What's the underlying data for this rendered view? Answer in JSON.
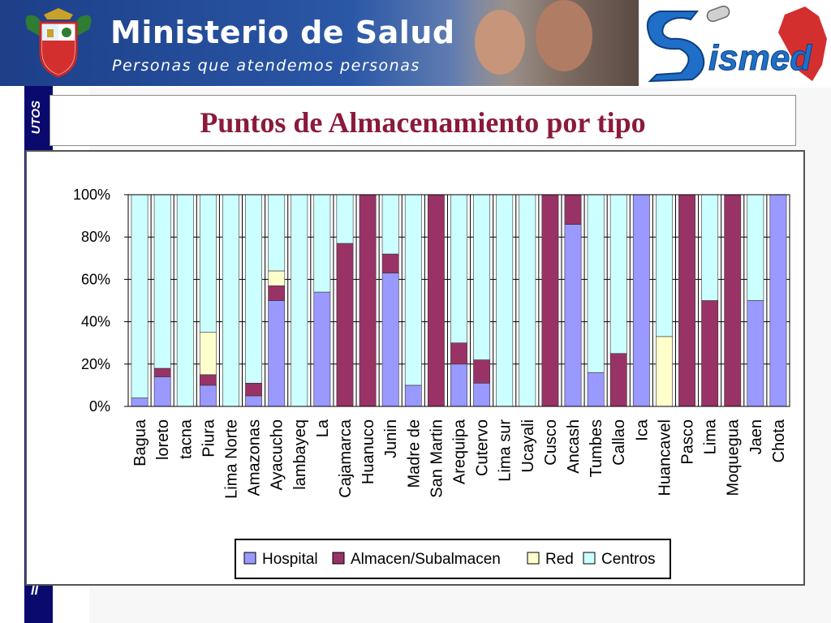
{
  "header": {
    "ministry_title": "Ministerio de Salud",
    "ministry_subtitle": "Personas que atendemos personas",
    "logo_text": "ismed"
  },
  "sidebar": {
    "text_top": "UTOS",
    "text_bottom": "II"
  },
  "slide_title": "Puntos de Almacenamiento por tipo",
  "colors": {
    "hospital": "#9999ff",
    "almacen": "#993366",
    "red": "#ffffcc",
    "centros": "#ccffff",
    "title": "#8b1a3a",
    "sidebar": "#0a0a6e"
  },
  "chart_data": {
    "type": "bar",
    "stacked": "percent",
    "title": "",
    "xlabel": "",
    "ylabel": "",
    "ylim": [
      0,
      100
    ],
    "yticks": [
      "0%",
      "20%",
      "40%",
      "60%",
      "80%",
      "100%"
    ],
    "grid": true,
    "legend_position": "bottom",
    "categories": [
      "Bagua",
      "loreto",
      "tacna",
      "Piura",
      "Lima Norte",
      "Amazonas",
      "Ayacucho",
      "lambayeq",
      "La",
      "Cajamarca",
      "Huanuco",
      "Junin",
      "Madre de",
      "San Martin",
      "Arequipa",
      "Cutervo",
      "Lima sur",
      "Ucayali",
      "Cusco",
      "Ancash",
      "Tumbes",
      "Callao",
      "Ica",
      "Huancavel",
      "Pasco",
      "Lima",
      "Moquegua",
      "Jaen",
      "Chota"
    ],
    "series": [
      {
        "name": "Hospital",
        "values": [
          4,
          14,
          0,
          10,
          0,
          5,
          50,
          0,
          54,
          0,
          0,
          63,
          10,
          0,
          20,
          11,
          0,
          0,
          0,
          86,
          16,
          0,
          100,
          0,
          0,
          0,
          0,
          50,
          100
        ]
      },
      {
        "name": "Almacen/Subalmacen",
        "values": [
          0,
          4,
          0,
          5,
          0,
          6,
          7,
          0,
          0,
          77,
          100,
          9,
          0,
          100,
          10,
          11,
          0,
          0,
          100,
          14,
          0,
          25,
          0,
          0,
          100,
          50,
          100,
          0,
          0
        ]
      },
      {
        "name": "Red",
        "values": [
          0,
          0,
          0,
          20,
          0,
          0,
          7,
          0,
          0,
          0,
          0,
          0,
          0,
          0,
          0,
          0,
          0,
          0,
          0,
          0,
          0,
          0,
          0,
          33,
          0,
          0,
          0,
          0,
          0
        ]
      },
      {
        "name": "Centros",
        "values": [
          96,
          82,
          100,
          65,
          100,
          89,
          36,
          100,
          46,
          23,
          0,
          28,
          90,
          0,
          70,
          78,
          100,
          100,
          0,
          0,
          84,
          75,
          0,
          67,
          0,
          50,
          0,
          50,
          0
        ]
      }
    ]
  }
}
